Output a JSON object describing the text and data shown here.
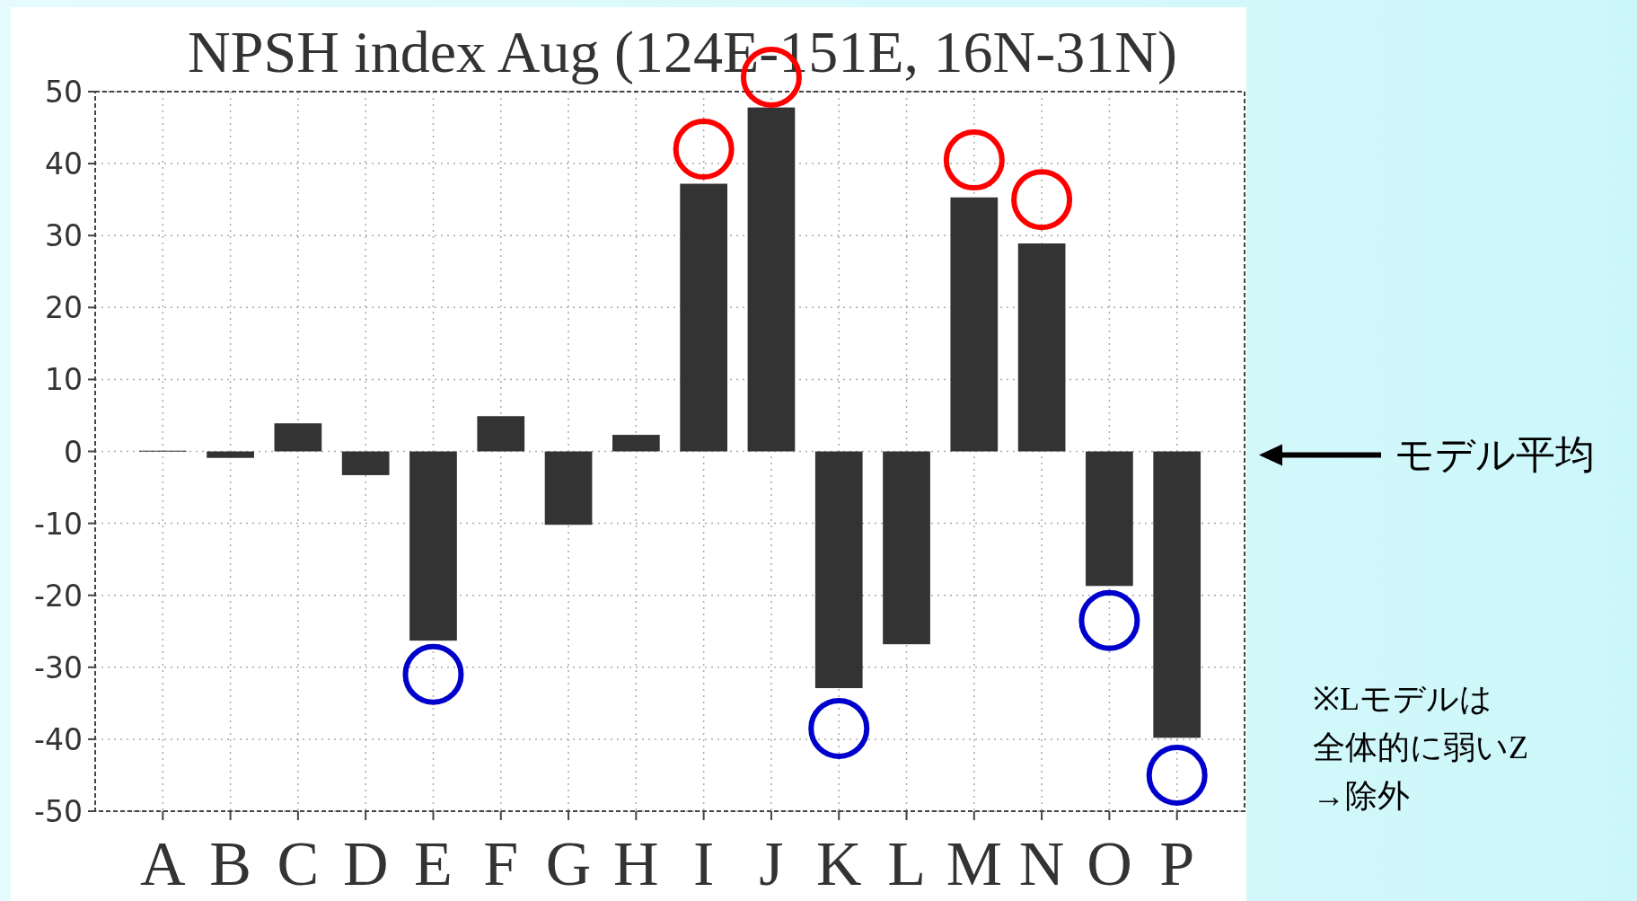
{
  "chart_data": {
    "type": "bar",
    "title": "NPSH index Aug (124E-151E, 16N-31N)",
    "categories": [
      "A",
      "B",
      "C",
      "D",
      "E",
      "F",
      "G",
      "H",
      "I",
      "J",
      "K",
      "L",
      "M",
      "N",
      "O",
      "P"
    ],
    "values": [
      0.1,
      -0.9,
      3.9,
      -3.3,
      -26.3,
      4.9,
      -10.2,
      2.3,
      37.2,
      47.8,
      -32.9,
      -26.8,
      35.3,
      28.9,
      -18.7,
      -39.8
    ],
    "color": "#333333",
    "ylim": [
      -50,
      50
    ],
    "yticks": [
      -50,
      -40,
      -30,
      -20,
      -10,
      0,
      10,
      20,
      30,
      40,
      50
    ],
    "grid": true,
    "annotations": [
      "モデル平均",
      "※Lモデルは",
      "全体的に弱いZ",
      "→除外"
    ]
  }
}
